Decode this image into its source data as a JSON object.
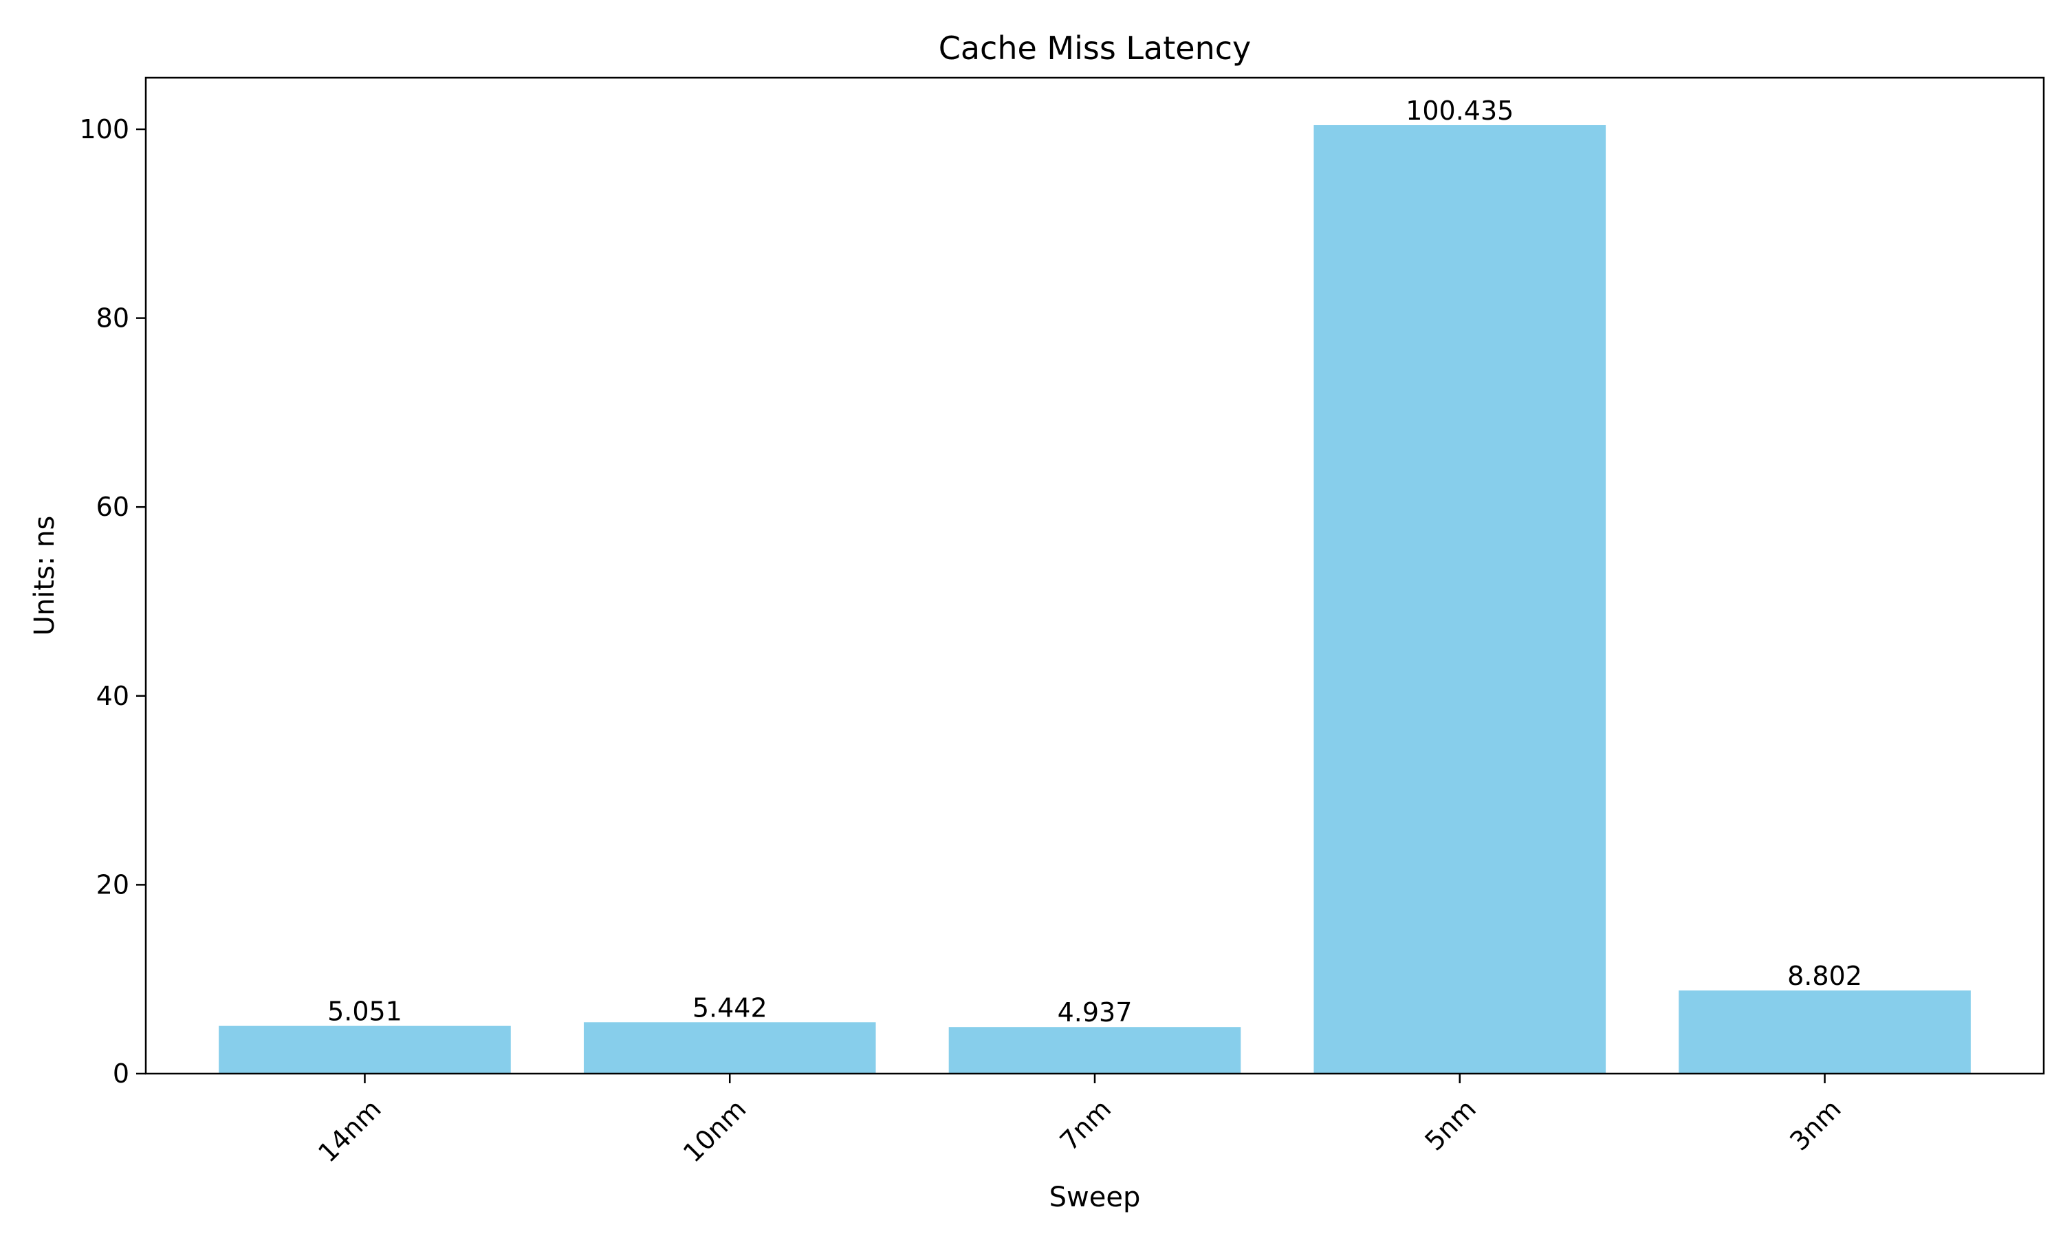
{
  "chart_data": {
    "type": "bar",
    "title": "Cache Miss Latency",
    "xlabel": "Sweep",
    "ylabel": "Units: ns",
    "categories": [
      "14nm",
      "10nm",
      "7nm",
      "5nm",
      "3nm"
    ],
    "values": [
      5.051,
      5.442,
      4.937,
      100.435,
      8.802
    ],
    "data_labels": [
      "5.051",
      "5.442",
      "4.937",
      "100.435",
      "8.802"
    ],
    "ylim": [
      0,
      105.46
    ],
    "yticks": [
      0,
      20,
      40,
      60,
      80,
      100
    ],
    "bar_color": "#87CEEB",
    "grid": false,
    "legend": "none"
  }
}
